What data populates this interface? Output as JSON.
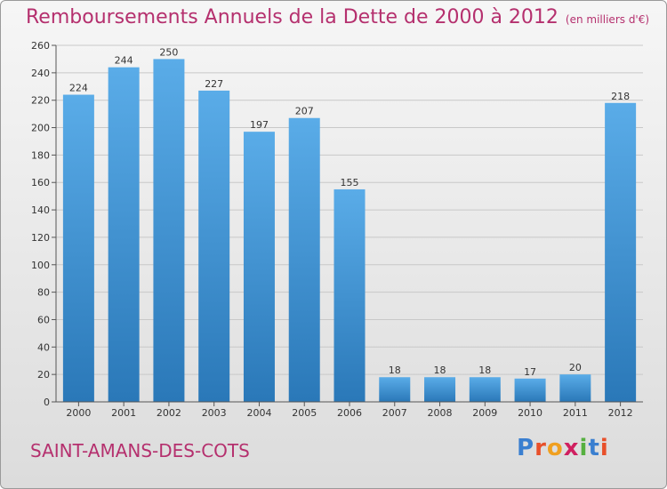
{
  "header": {
    "title": "Remboursements Annuels de la Dette de 2000 à 2012",
    "unit": "(en milliers d'€)"
  },
  "footer": {
    "city": "SAINT-AMANS-DES-COTS",
    "logo": {
      "letters": [
        "P",
        "r",
        "o",
        "x",
        "i",
        "t",
        "i"
      ],
      "colors": [
        "#3a7fd0",
        "#e8502a",
        "#f0a020",
        "#d02060",
        "#56b040",
        "#3a7fd0",
        "#e8502a"
      ]
    }
  },
  "chart_data": {
    "type": "bar",
    "categories": [
      "2000",
      "2001",
      "2002",
      "2003",
      "2004",
      "2005",
      "2006",
      "2007",
      "2008",
      "2009",
      "2010",
      "2011",
      "2012"
    ],
    "values": [
      224,
      244,
      250,
      227,
      197,
      207,
      155,
      18,
      18,
      18,
      17,
      20,
      218
    ],
    "ylim": [
      0,
      260
    ],
    "yticks": [
      0,
      20,
      40,
      60,
      80,
      100,
      120,
      140,
      160,
      180,
      200,
      220,
      240,
      260
    ],
    "grid": true,
    "colors": {
      "bar_top": "#5aace8",
      "bar_bottom": "#2a78b8"
    }
  }
}
